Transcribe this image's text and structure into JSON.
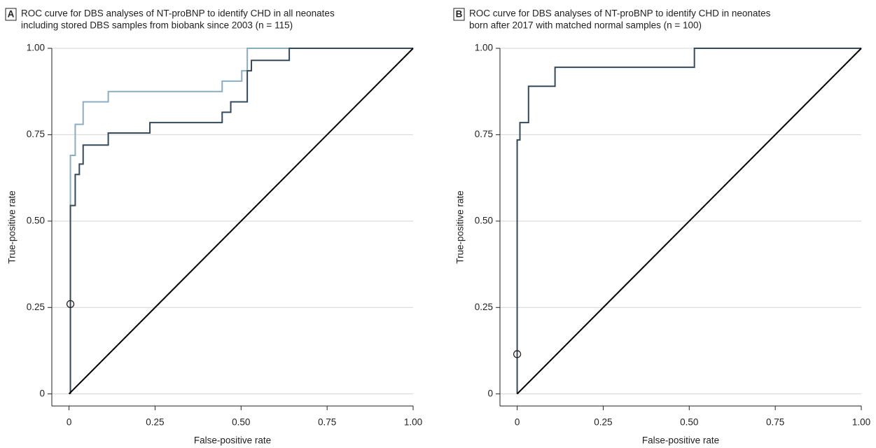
{
  "chart_data": [
    {
      "type": "line",
      "label": "A",
      "title": [
        "ROC curve for DBS analyses of NT-proBNP to identify CHD in all neonates",
        "including stored DBS samples from biobank since 2003 (n = 115)"
      ],
      "xlabel": "False-positive rate",
      "ylabel": "True-positive rate",
      "xlim": [
        -0.05,
        1
      ],
      "ylim": [
        -0.035,
        1
      ],
      "xticks": [
        0,
        {
          "value": 0.25,
          "label": "0.25"
        },
        {
          "value": 0.5,
          "label": "0.50"
        },
        {
          "value": 0.75,
          "label": "0.75"
        },
        {
          "value": 1,
          "label": "1.00"
        }
      ],
      "yticks": [
        0,
        {
          "value": 0.25,
          "label": "0.25"
        },
        {
          "value": 0.5,
          "label": "0.50"
        },
        {
          "value": 0.75,
          "label": "0.75"
        },
        {
          "value": 1,
          "label": "1.00"
        }
      ],
      "grid": true,
      "series": [
        {
          "color": "#8aaebf",
          "x": [
            0.004,
            0.004,
            0.018,
            0.018,
            0.041,
            0.041,
            0.114,
            0.114,
            0.445,
            0.445,
            0.502,
            0.502,
            0.518,
            0.518,
            1
          ],
          "values": [
            0,
            0.69,
            0.69,
            0.78,
            0.78,
            0.845,
            0.845,
            0.875,
            0.875,
            0.905,
            0.905,
            0.935,
            0.935,
            1,
            1
          ]
        },
        {
          "color": "#34495a",
          "x": [
            0.004,
            0.004,
            0.018,
            0.018,
            0.03,
            0.03,
            0.041,
            0.041,
            0.114,
            0.114,
            0.235,
            0.235,
            0.445,
            0.445,
            0.47,
            0.47,
            0.518,
            0.518,
            0.53,
            0.53,
            0.64,
            0.64,
            1
          ],
          "values": [
            0,
            0.545,
            0.545,
            0.635,
            0.635,
            0.665,
            0.665,
            0.72,
            0.72,
            0.755,
            0.755,
            0.785,
            0.785,
            0.815,
            0.815,
            0.845,
            0.845,
            0.935,
            0.935,
            0.965,
            0.965,
            1,
            1
          ]
        },
        {
          "color": "#000000",
          "x": [
            0,
            1
          ],
          "values": [
            0,
            1
          ]
        }
      ],
      "marker": {
        "x": 0.004,
        "y": 0.26
      }
    },
    {
      "type": "line",
      "label": "B",
      "title": [
        "ROC curve for DBS analyses of NT-proBNP to identify CHD in neonates",
        "born after 2017 with matched normal samples (n = 100)"
      ],
      "xlabel": "False-positive rate",
      "ylabel": "True-positive rate",
      "xlim": [
        -0.05,
        1
      ],
      "ylim": [
        -0.035,
        1
      ],
      "xticks": [
        0,
        {
          "value": 0.25,
          "label": "0.25"
        },
        {
          "value": 0.5,
          "label": "0.50"
        },
        {
          "value": 0.75,
          "label": "0.75"
        },
        {
          "value": 1,
          "label": "1.00"
        }
      ],
      "yticks": [
        0,
        {
          "value": 0.25,
          "label": "0.25"
        },
        {
          "value": 0.5,
          "label": "0.50"
        },
        {
          "value": 0.75,
          "label": "0.75"
        },
        {
          "value": 1,
          "label": "1.00"
        }
      ],
      "grid": true,
      "series": [
        {
          "color": "#34495a",
          "x": [
            0,
            0,
            0.008,
            0.008,
            0.033,
            0.033,
            0.11,
            0.11,
            0.515,
            0.515,
            1
          ],
          "values": [
            0,
            0.735,
            0.735,
            0.785,
            0.785,
            0.89,
            0.89,
            0.945,
            0.945,
            1,
            1
          ]
        },
        {
          "color": "#000000",
          "x": [
            0,
            1
          ],
          "values": [
            0,
            1
          ]
        }
      ],
      "marker": {
        "x": 0,
        "y": 0.115
      }
    }
  ]
}
